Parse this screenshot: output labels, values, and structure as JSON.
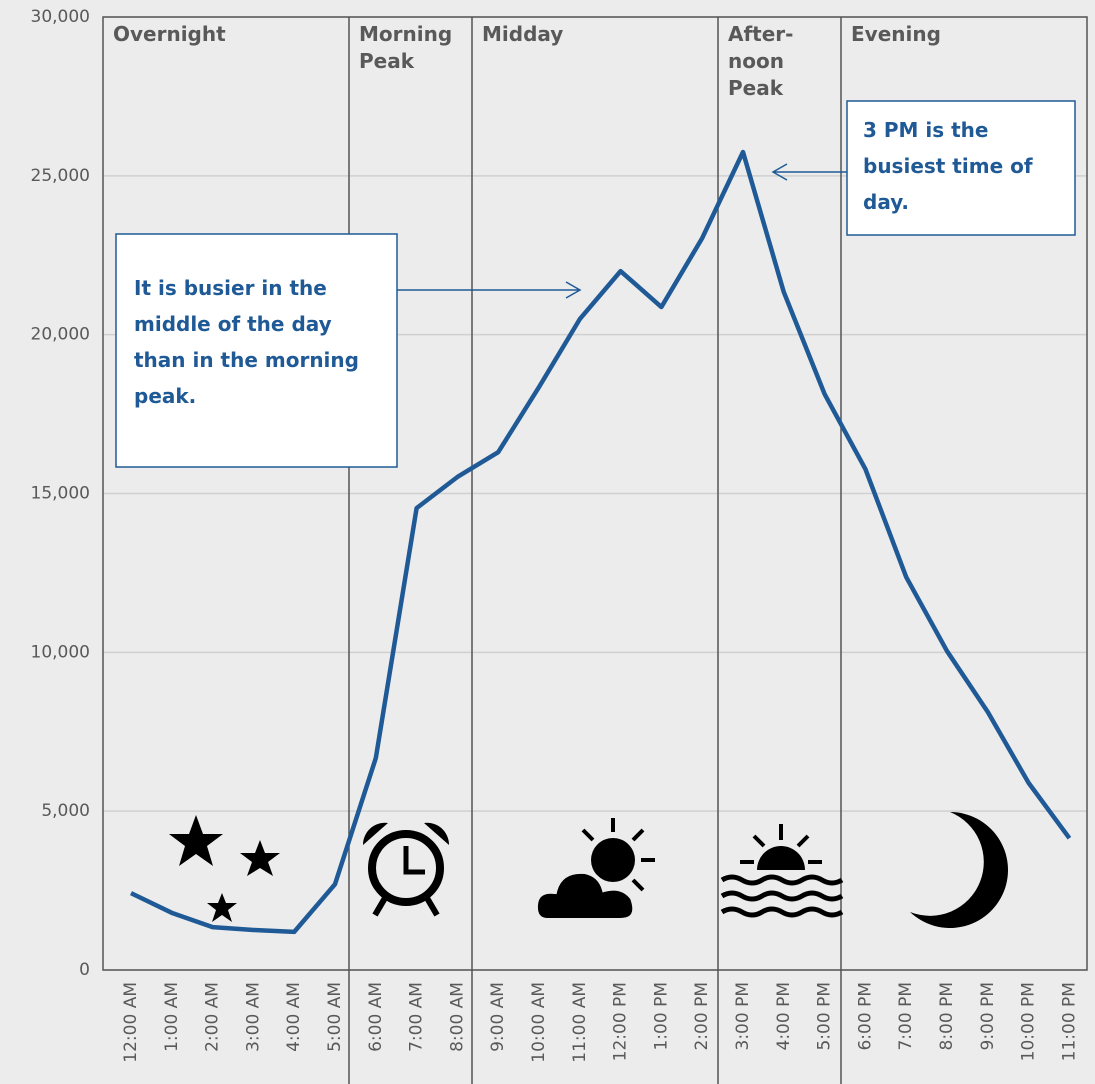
{
  "chart_data": {
    "type": "line",
    "categories": [
      "12:00 AM",
      "1:00 AM",
      "2:00 AM",
      "3:00 AM",
      "4:00 AM",
      "5:00 AM",
      "6:00 AM",
      "7:00 AM",
      "8:00 AM",
      "9:00 AM",
      "10:00 AM",
      "11:00 AM",
      "12:00 PM",
      "1:00 PM",
      "2:00 PM",
      "3:00 PM",
      "4:00 PM",
      "5:00 PM",
      "6:00 PM",
      "7:00 PM",
      "8:00 PM",
      "9:00 PM",
      "10:00 PM",
      "11:00 PM"
    ],
    "values": [
      2420,
      1800,
      1350,
      1260,
      1200,
      2700,
      6670,
      14540,
      15520,
      16300,
      18350,
      20490,
      22000,
      20870,
      23040,
      25750,
      21340,
      18130,
      15770,
      12370,
      10040,
      8120,
      5890,
      4150
    ],
    "color": "#1f5a96",
    "ylim": [
      0,
      30000
    ],
    "yticks": [
      0,
      {
        "value": 5000,
        "label": "5,000"
      },
      {
        "value": 10000,
        "label": "10,000"
      },
      {
        "value": 15000,
        "label": "15,000"
      },
      {
        "value": 20000,
        "label": "20,000"
      },
      {
        "value": 25000,
        "label": "25,000"
      },
      {
        "value": 30000,
        "label": "30,000"
      }
    ],
    "grid": true,
    "periods": [
      {
        "label": "Overnight",
        "from": "12:00 AM",
        "to": "5:00 AM"
      },
      {
        "label": "Morning Peak",
        "from": "6:00 AM",
        "to": "8:00 AM"
      },
      {
        "label": "Midday",
        "from": "9:00 AM",
        "to": "2:00 PM"
      },
      {
        "label": "After-noon Peak",
        "from": "3:00 PM",
        "to": "5:00 PM"
      },
      {
        "label": "Evening",
        "from": "6:00 PM",
        "to": "11:00 PM"
      }
    ],
    "annotations": [
      "It is busier in the middle of the day than in the morning peak.",
      "3 PM is the busiest time of day."
    ]
  }
}
